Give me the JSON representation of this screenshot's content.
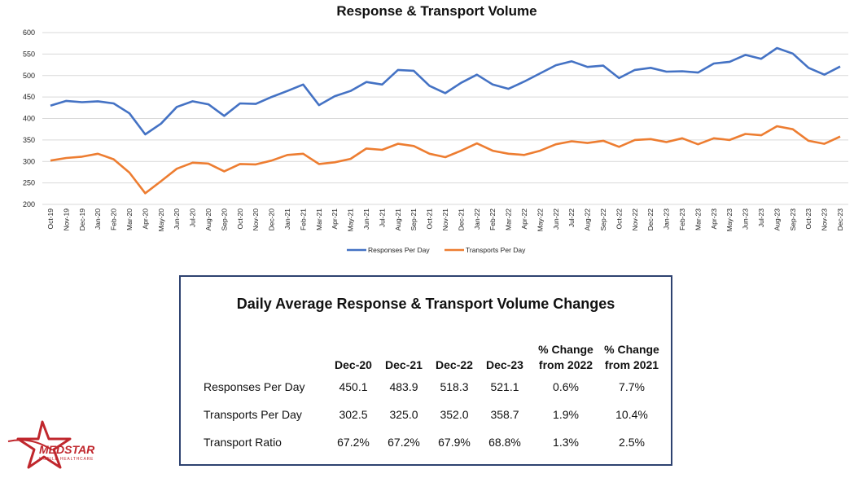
{
  "chart_data": {
    "type": "line",
    "title": "Response & Transport Volume",
    "xlabel": "",
    "ylabel": "",
    "ylim": [
      200,
      600
    ],
    "yticks": [
      200,
      250,
      300,
      350,
      400,
      450,
      500,
      550,
      600
    ],
    "grid": true,
    "legend": "bottom",
    "x": [
      "Oct-19",
      "Nov-19",
      "Dec-19",
      "Jan-20",
      "Feb-20",
      "Mar-20",
      "Apr-20",
      "May-20",
      "Jun-20",
      "Jul-20",
      "Aug-20",
      "Sep-20",
      "Oct-20",
      "Nov-20",
      "Dec-20",
      "Jan-21",
      "Feb-21",
      "Mar-21",
      "Apr-21",
      "May-21",
      "Jun-21",
      "Jul-21",
      "Aug-21",
      "Sep-21",
      "Oct-21",
      "Nov-21",
      "Dec-21",
      "Jan-22",
      "Feb-22",
      "Mar-22",
      "Apr-22",
      "May-22",
      "Jun-22",
      "Jul-22",
      "Aug-22",
      "Sep-22",
      "Oct-22",
      "Nov-22",
      "Dec-22",
      "Jan-23",
      "Feb-23",
      "Mar-23",
      "Apr-23",
      "May-23",
      "Jun-23",
      "Jul-23",
      "Aug-23",
      "Sep-23",
      "Oct-23",
      "Nov-23",
      "Dec-23"
    ],
    "series": [
      {
        "name": "Responses Per Day",
        "color": "#4472c4",
        "values": [
          430,
          441,
          438,
          440,
          435,
          412,
          363,
          388,
          427,
          440,
          433,
          406,
          435,
          434,
          450,
          464,
          479,
          431,
          452,
          464,
          485,
          479,
          513,
          511,
          476,
          459,
          483,
          502,
          479,
          469,
          486,
          505,
          524,
          533,
          520,
          523,
          494,
          513,
          518,
          509,
          510,
          507,
          528,
          532,
          548,
          539,
          564,
          551,
          518,
          502,
          521
        ]
      },
      {
        "name": "Transports Per Day",
        "color": "#ed7d31",
        "values": [
          302,
          308,
          311,
          318,
          305,
          274,
          226,
          254,
          283,
          297,
          295,
          277,
          294,
          293,
          302,
          315,
          318,
          294,
          298,
          306,
          330,
          327,
          341,
          336,
          318,
          310,
          325,
          342,
          325,
          318,
          315,
          325,
          340,
          347,
          343,
          348,
          334,
          350,
          352,
          345,
          354,
          340,
          354,
          350,
          364,
          361,
          382,
          375,
          348,
          341,
          358
        ]
      }
    ]
  },
  "summary": {
    "title": "Daily Average Response & Transport Volume Changes",
    "columns": [
      "Dec-20",
      "Dec-21",
      "Dec-22",
      "Dec-23",
      "% Change from 2022",
      "% Change from 2021"
    ],
    "rows": [
      {
        "label": "Responses Per Day",
        "values": [
          "450.1",
          "483.9",
          "518.3",
          "521.1",
          "0.6%",
          "7.7%"
        ]
      },
      {
        "label": "Transports Per Day",
        "values": [
          "302.5",
          "325.0",
          "352.0",
          "358.7",
          "1.9%",
          "10.4%"
        ]
      },
      {
        "label": "Transport Ratio",
        "values": [
          "67.2%",
          "67.2%",
          "67.9%",
          "68.8%",
          "1.3%",
          "2.5%"
        ]
      }
    ]
  },
  "logo": {
    "name": "MEDSTAR",
    "tagline": "MOBILE HEALTHCARE",
    "color": "#c0272d"
  }
}
